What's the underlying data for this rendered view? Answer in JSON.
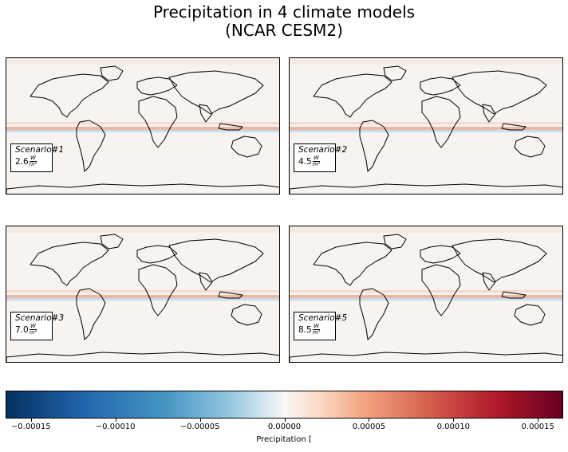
{
  "title_line1": "Precipitation in 4 climate models",
  "title_line2": "(NCAR CESM2)",
  "panels": [
    {
      "scenario": "Scenario#1",
      "value": "2.6",
      "unit_num": "W",
      "unit_den": "m²"
    },
    {
      "scenario": "Scenario#2",
      "value": "4.5",
      "unit_num": "W",
      "unit_den": "m²"
    },
    {
      "scenario": "Scenario#3",
      "value": "7.0",
      "unit_num": "W",
      "unit_den": "m²"
    },
    {
      "scenario": "Scenario#5",
      "value": "8.5",
      "unit_num": "W",
      "unit_den": "m²"
    }
  ],
  "colorbar": {
    "label": "Precipitation [",
    "range": [
      -0.000165,
      0.000165
    ],
    "colormap": "RdBu_r",
    "ticks": [
      "−0.00015",
      "−0.00010",
      "−0.00005",
      "0.00000",
      "0.00005",
      "0.00010",
      "0.00015"
    ],
    "tick_values": [
      -0.00015,
      -0.0001,
      -5e-05,
      0,
      5e-05,
      0.0001,
      0.00015
    ]
  }
}
